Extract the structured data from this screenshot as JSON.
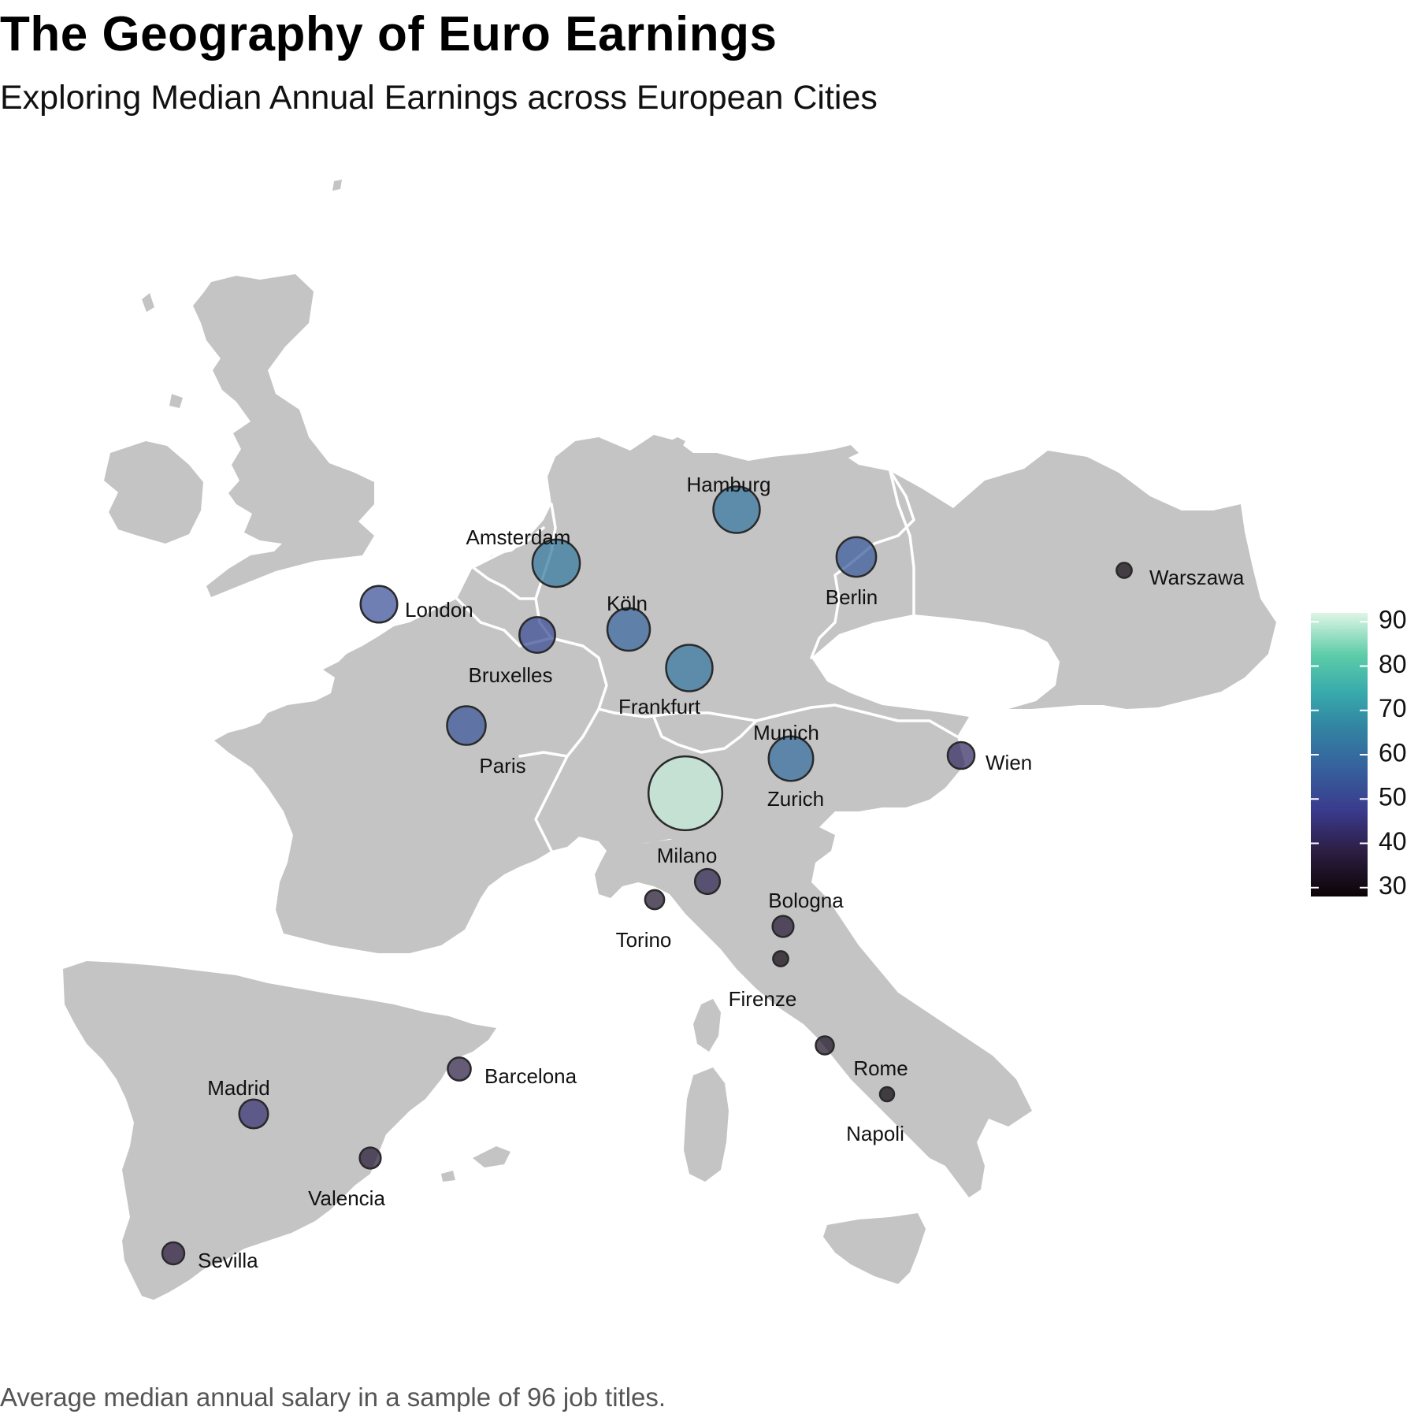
{
  "title": "The Geography of Euro Earnings",
  "subtitle": "Exploring Median Annual Earnings across European Cities",
  "caption": "Average median annual salary in a sample of 96 job titles.",
  "legend": {
    "ticks": [
      30,
      40,
      50,
      60,
      70,
      80,
      90
    ],
    "scale": "mako",
    "min": 28,
    "max": 92
  },
  "cities": [
    {
      "name": "Hamburg",
      "value": 62,
      "label_pos": "above"
    },
    {
      "name": "Amsterdam",
      "value": 63,
      "label_pos": "above"
    },
    {
      "name": "Berlin",
      "value": 55,
      "label_pos": "below"
    },
    {
      "name": "Warszawa",
      "value": 30,
      "label_pos": "right"
    },
    {
      "name": "London",
      "value": 52,
      "label_pos": "right"
    },
    {
      "name": "Köln",
      "value": 58,
      "label_pos": "above"
    },
    {
      "name": "Bruxelles",
      "value": 51,
      "label_pos": "below"
    },
    {
      "name": "Frankfurt",
      "value": 62,
      "label_pos": "below"
    },
    {
      "name": "Paris",
      "value": 54,
      "label_pos": "below"
    },
    {
      "name": "Munich",
      "value": 60,
      "label_pos": "above"
    },
    {
      "name": "Zurich",
      "value": 90,
      "label_pos": "none"
    },
    {
      "name": "Wien",
      "value": 42,
      "label_pos": "right"
    },
    {
      "name": "Milano",
      "value": 40,
      "label_pos": "none"
    },
    {
      "name": "Torino",
      "value": 34,
      "label_pos": "below"
    },
    {
      "name": "Bologna",
      "value": 36,
      "label_pos": "none"
    },
    {
      "name": "Firenze",
      "value": 30,
      "label_pos": "below"
    },
    {
      "name": "Rome",
      "value": 33,
      "label_pos": "below-right"
    },
    {
      "name": "Napoli",
      "value": 29,
      "label_pos": "below"
    },
    {
      "name": "Barcelona",
      "value": 38,
      "label_pos": "right"
    },
    {
      "name": "Madrid",
      "value": 44,
      "label_pos": "above"
    },
    {
      "name": "Valencia",
      "value": 36,
      "label_pos": "below"
    },
    {
      "name": "Sevilla",
      "value": 37,
      "label_pos": "right"
    }
  ]
}
